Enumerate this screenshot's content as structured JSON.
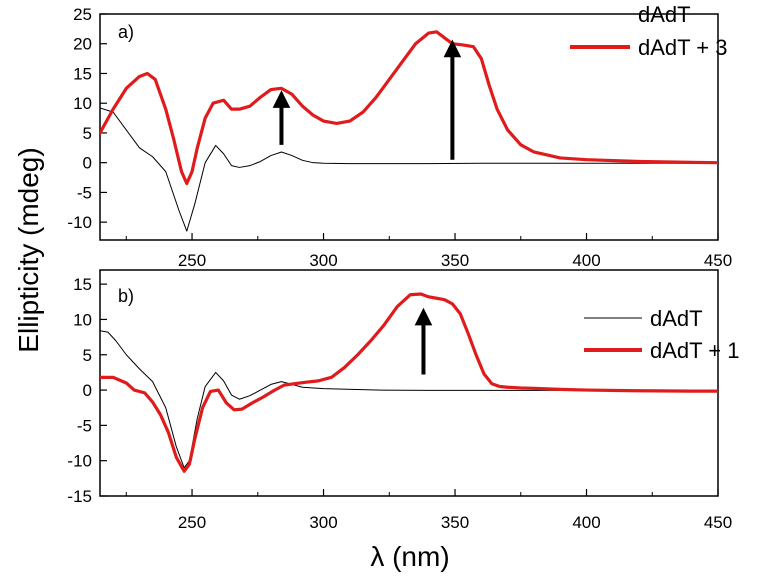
{
  "figure": {
    "ylabel": "Ellipticity (mdeg)",
    "xlabel": "λ (nm)"
  },
  "colors": {
    "reference": "#000000",
    "complex": "#e01b1b",
    "arrow": "#000000"
  },
  "chart_data": [
    {
      "type": "line",
      "panel_label": "a)",
      "title": "",
      "xlabel": "λ (nm)",
      "ylabel": "Ellipticity (mdeg)",
      "xlim": [
        215,
        450
      ],
      "ylim": [
        -13,
        25
      ],
      "xticks": [
        250,
        300,
        350,
        400,
        450
      ],
      "yticks": [
        -10,
        -5,
        0,
        5,
        10,
        15,
        20,
        25
      ],
      "legend_position": "top-right",
      "arrows": [
        {
          "x": 284,
          "y_from": 3,
          "y_to": 12
        },
        {
          "x": 349,
          "y_from": 0.5,
          "y_to": 20.5
        }
      ],
      "series": [
        {
          "name": "dAdT",
          "role": "reference",
          "x": [
            215,
            220,
            225,
            230,
            235,
            240,
            245,
            248,
            251,
            255,
            259,
            262,
            265,
            268,
            272,
            276,
            280,
            284,
            288,
            292,
            296,
            300,
            310,
            320,
            340,
            360,
            380,
            400,
            420,
            440,
            450
          ],
          "y": [
            9.2,
            8.5,
            5.5,
            2.5,
            1.0,
            -1.5,
            -8,
            -11.5,
            -7,
            0,
            2.9,
            1.5,
            -0.5,
            -0.8,
            -0.5,
            0.2,
            1.2,
            1.8,
            1.2,
            0.4,
            0,
            -0.1,
            -0.15,
            -0.15,
            -0.15,
            -0.1,
            -0.1,
            -0.1,
            -0.1,
            -0.1,
            -0.1
          ]
        },
        {
          "name": "dAdT + 3",
          "role": "complex",
          "x": [
            215,
            220,
            225,
            230,
            233,
            236,
            240,
            243,
            246,
            248,
            250,
            252,
            255,
            258,
            262,
            265,
            268,
            272,
            276,
            280,
            284,
            288,
            292,
            296,
            300,
            305,
            310,
            315,
            320,
            325,
            330,
            335,
            340,
            343,
            346,
            349,
            353,
            357,
            360,
            363,
            366,
            370,
            375,
            380,
            390,
            400,
            420,
            440,
            450
          ],
          "y": [
            5,
            9,
            12.5,
            14.5,
            15,
            14,
            9,
            4,
            -1.5,
            -3.5,
            -1.5,
            2.5,
            7.5,
            10,
            10.5,
            9,
            9,
            9.5,
            11,
            12.3,
            12.5,
            11.5,
            9.5,
            8,
            7,
            6.6,
            7,
            8.5,
            11,
            14,
            17,
            20,
            21.8,
            22,
            21,
            20,
            19.8,
            19.5,
            17.5,
            13,
            9,
            5.5,
            3,
            1.8,
            0.8,
            0.5,
            0.2,
            0.05,
            0
          ]
        }
      ]
    },
    {
      "type": "line",
      "panel_label": "b)",
      "title": "",
      "xlabel": "λ (nm)",
      "ylabel": "Ellipticity (mdeg)",
      "xlim": [
        215,
        450
      ],
      "ylim": [
        -15,
        17
      ],
      "xticks": [
        250,
        300,
        350,
        400,
        450
      ],
      "yticks": [
        -15,
        -10,
        -5,
        0,
        5,
        10,
        15
      ],
      "legend_position": "center-right",
      "arrows": [
        {
          "x": 338,
          "y_from": 2.2,
          "y_to": 11.5
        }
      ],
      "series": [
        {
          "name": "dAdT",
          "role": "reference",
          "x": [
            215,
            218,
            221,
            225,
            230,
            235,
            240,
            244,
            247,
            249,
            252,
            255,
            259,
            262,
            265,
            268,
            272,
            276,
            280,
            284,
            288,
            292,
            300,
            320,
            340,
            360,
            380,
            400,
            420,
            440,
            450
          ],
          "y": [
            8.4,
            8.2,
            7,
            5,
            3,
            1.2,
            -2.5,
            -8,
            -11,
            -10,
            -4,
            0.5,
            2.5,
            1.3,
            -0.7,
            -1.3,
            -0.8,
            0,
            0.8,
            1.2,
            0.8,
            0.4,
            0.2,
            0,
            -0.05,
            -0.05,
            -0.05,
            -0.05,
            -0.05,
            -0.05,
            -0.05
          ]
        },
        {
          "name": "dAdT + 1",
          "role": "complex",
          "x": [
            215,
            220,
            225,
            228,
            232,
            235,
            238,
            241,
            244,
            247,
            249,
            251,
            254,
            257,
            260,
            263,
            266,
            269,
            273,
            277,
            281,
            285,
            289,
            293,
            298,
            303,
            308,
            313,
            318,
            323,
            328,
            333,
            337,
            340,
            343,
            346,
            349,
            352,
            355,
            358,
            361,
            364,
            367,
            370,
            375,
            380,
            390,
            400,
            420,
            440,
            450
          ],
          "y": [
            1.8,
            1.8,
            1,
            0,
            -0.4,
            -1.7,
            -3.5,
            -6,
            -9.5,
            -11.5,
            -10.5,
            -7,
            -2.5,
            -0.2,
            0,
            -1.8,
            -2.8,
            -2.7,
            -1.8,
            -1,
            -0.1,
            0.7,
            0.9,
            1.1,
            1.3,
            1.8,
            3.2,
            5,
            7,
            9.2,
            11.8,
            13.5,
            13.6,
            13.2,
            13,
            12.8,
            12.2,
            10.8,
            8,
            5,
            2.3,
            0.9,
            0.5,
            0.4,
            0.3,
            0.25,
            0.1,
            0,
            -0.1,
            -0.15,
            -0.15
          ]
        }
      ]
    }
  ]
}
